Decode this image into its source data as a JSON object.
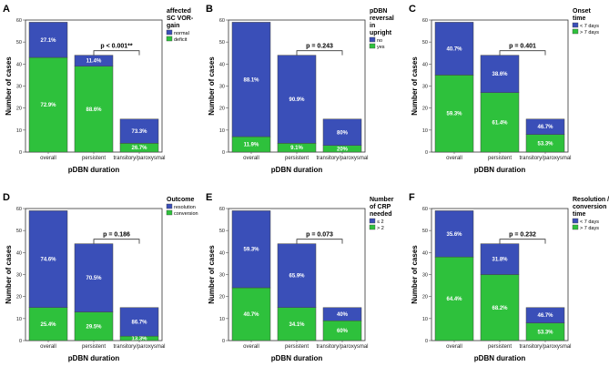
{
  "colors": {
    "blue": "#3a4fb8",
    "green": "#2ec13c",
    "axis": "#333333",
    "tick": "#555555"
  },
  "chart_data": [
    {
      "type": "bar",
      "stacked": true,
      "panel": "A",
      "categories": [
        "overall",
        "persistent",
        "transitory/paroxysmal"
      ],
      "xlabel": "pDBN duration",
      "ylabel": "Number of cases",
      "ylim": [
        0,
        60
      ],
      "yticks": [
        "0",
        "10",
        "20",
        "30",
        "40",
        "50",
        "60"
      ],
      "legend_title": [
        "affected",
        "SC VOR-",
        "gain"
      ],
      "series": [
        {
          "name": "deficit",
          "color": "#2ec13c",
          "values": [
            43,
            39,
            4
          ],
          "labels": [
            "72.9%",
            "88.6%",
            "26.7%"
          ]
        },
        {
          "name": "normal",
          "color": "#3a4fb8",
          "values": [
            16,
            5,
            11
          ],
          "labels": [
            "27.1%",
            "11.4%",
            "73.3%"
          ]
        }
      ],
      "pvalue": "p < 0.001**"
    },
    {
      "type": "bar",
      "stacked": true,
      "panel": "B",
      "categories": [
        "overall",
        "persistent",
        "transitory/paroxysmal"
      ],
      "xlabel": "pDBN duration",
      "ylabel": "Number of cases",
      "ylim": [
        0,
        60
      ],
      "yticks": [
        "0",
        "10",
        "20",
        "30",
        "40",
        "50",
        "60"
      ],
      "legend_title": [
        "pDBN",
        "reversal",
        "in",
        "upright"
      ],
      "series": [
        {
          "name": "yes",
          "color": "#2ec13c",
          "values": [
            7,
            4,
            3
          ],
          "labels": [
            "11.9%",
            "9.1%",
            "20%"
          ]
        },
        {
          "name": "no",
          "color": "#3a4fb8",
          "values": [
            52,
            40,
            12
          ],
          "labels": [
            "88.1%",
            "90.9%",
            "80%"
          ]
        }
      ],
      "pvalue": "p = 0.243"
    },
    {
      "type": "bar",
      "stacked": true,
      "panel": "C",
      "categories": [
        "overall",
        "persistent",
        "transitory/paroxysmal"
      ],
      "xlabel": "pDBN duration",
      "ylabel": "Number of cases",
      "ylim": [
        0,
        60
      ],
      "yticks": [
        "0",
        "10",
        "20",
        "30",
        "40",
        "50",
        "60"
      ],
      "legend_title": [
        "Onset",
        "time"
      ],
      "series": [
        {
          "name": "> 7 days",
          "color": "#2ec13c",
          "values": [
            35,
            27,
            8
          ],
          "labels": [
            "59.3%",
            "61.4%",
            "53.3%"
          ]
        },
        {
          "name": "< 7 days",
          "color": "#3a4fb8",
          "values": [
            24,
            17,
            7
          ],
          "labels": [
            "40.7%",
            "38.6%",
            "46.7%"
          ]
        }
      ],
      "pvalue": "p = 0.401"
    },
    {
      "type": "bar",
      "stacked": true,
      "panel": "D",
      "categories": [
        "overall",
        "persistent",
        "transitory/paroxysmal"
      ],
      "xlabel": "pDBN duration",
      "ylabel": "Number of cases",
      "ylim": [
        0,
        60
      ],
      "yticks": [
        "0",
        "10",
        "20",
        "30",
        "40",
        "50",
        "60"
      ],
      "legend_title": [
        "Outcome"
      ],
      "series": [
        {
          "name": "conversion",
          "color": "#2ec13c",
          "values": [
            15,
            13,
            2
          ],
          "labels": [
            "25.4%",
            "29.5%",
            "13.3%"
          ]
        },
        {
          "name": "resolution",
          "color": "#3a4fb8",
          "values": [
            44,
            31,
            13
          ],
          "labels": [
            "74.6%",
            "70.5%",
            "86.7%"
          ]
        }
      ],
      "pvalue": "p = 0.186"
    },
    {
      "type": "bar",
      "stacked": true,
      "panel": "E",
      "categories": [
        "overall",
        "persistent",
        "transitory/paroxysmal"
      ],
      "xlabel": "pDBN duration",
      "ylabel": "Number of cases",
      "ylim": [
        0,
        60
      ],
      "yticks": [
        "0",
        "10",
        "20",
        "30",
        "40",
        "50",
        "60"
      ],
      "legend_title": [
        "Number",
        "of CRP",
        "needed"
      ],
      "series": [
        {
          "name": "> 2",
          "color": "#2ec13c",
          "values": [
            24,
            15,
            9
          ],
          "labels": [
            "40.7%",
            "34.1%",
            "60%"
          ]
        },
        {
          "name": "≤ 2",
          "color": "#3a4fb8",
          "values": [
            35,
            29,
            6
          ],
          "labels": [
            "59.3%",
            "65.9%",
            "40%"
          ]
        }
      ],
      "pvalue": "p = 0.073"
    },
    {
      "type": "bar",
      "stacked": true,
      "panel": "F",
      "categories": [
        "overall",
        "persistent",
        "transitory/paroxysmal"
      ],
      "xlabel": "pDBN duration",
      "ylabel": "Number of cases",
      "ylim": [
        0,
        60
      ],
      "yticks": [
        "0",
        "10",
        "20",
        "30",
        "40",
        "50",
        "60"
      ],
      "legend_title": [
        "Resolution /",
        "conversion",
        "time"
      ],
      "series": [
        {
          "name": "> 7 days",
          "color": "#2ec13c",
          "values": [
            38,
            30,
            8
          ],
          "labels": [
            "64.4%",
            "68.2%",
            "53.3%"
          ]
        },
        {
          "name": "< 7 days",
          "color": "#3a4fb8",
          "values": [
            21,
            14,
            7
          ],
          "labels": [
            "35.6%",
            "31.8%",
            "46.7%"
          ]
        }
      ],
      "pvalue": "p = 0.232"
    }
  ]
}
